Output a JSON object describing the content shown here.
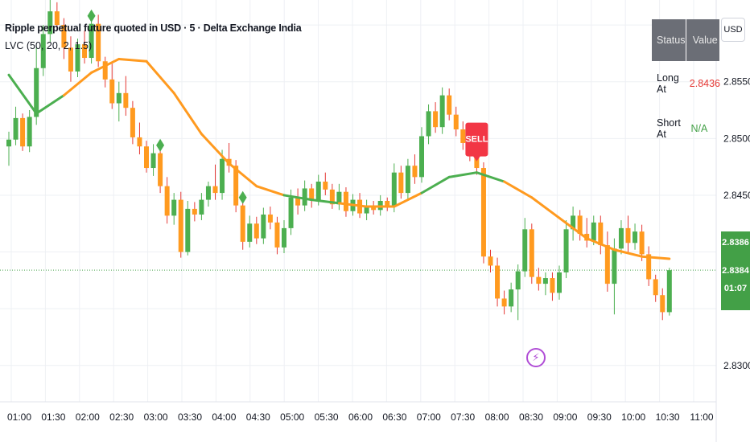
{
  "header": {
    "title": "Ripple perpetual future quoted in USD · 5 · Delta Exchange India",
    "indicator": "LVC (50, 20, 2, 1.5)"
  },
  "currency_button": "USD",
  "status_table": {
    "header": [
      "Status",
      "Value"
    ],
    "rows": [
      {
        "label": "Long At",
        "value": "2.8436",
        "color": "#e53935"
      },
      {
        "label": "Short At",
        "value": "N/A",
        "color": "#43a047"
      }
    ]
  },
  "price_labels": {
    "last_price": "2.8386",
    "current_price": "2.8384",
    "countdown": "01:07",
    "color": "#43a047"
  },
  "chart_data": {
    "type": "candlestick",
    "x_ticks": [
      "01:00",
      "01:30",
      "02:00",
      "02:30",
      "03:00",
      "03:30",
      "04:00",
      "04:30",
      "05:00",
      "05:30",
      "06:00",
      "06:30",
      "07:00",
      "07:30",
      "08:00",
      "08:30",
      "09:00",
      "09:30",
      "10:00",
      "10:30",
      "11:00"
    ],
    "y_ticks": [
      "2.8550",
      "2.8500",
      "2.8450",
      "2.8300"
    ],
    "ylim": [
      2.8268,
      2.8622
    ],
    "colors": {
      "up": "#4caf50",
      "down": "#ff9a1f",
      "ma_down": "#ff9a1f",
      "ma_up": "#4caf50",
      "wick_up": "#4caf50",
      "wick_down": "#e53935"
    },
    "candles": [
      {
        "t": 0,
        "o": 2.8493,
        "h": 2.8506,
        "l": 2.8476,
        "c": 2.8499
      },
      {
        "t": 1,
        "o": 2.8499,
        "h": 2.8528,
        "l": 2.8494,
        "c": 2.8518
      },
      {
        "t": 2,
        "o": 2.8518,
        "h": 2.8522,
        "l": 2.8489,
        "c": 2.8493
      },
      {
        "t": 3,
        "o": 2.8493,
        "h": 2.8525,
        "l": 2.8488,
        "c": 2.8519
      },
      {
        "t": 4,
        "o": 2.8519,
        "h": 2.858,
        "l": 2.8512,
        "c": 2.8562
      },
      {
        "t": 5,
        "o": 2.8562,
        "h": 2.86,
        "l": 2.8555,
        "c": 2.8592
      },
      {
        "t": 6,
        "o": 2.8592,
        "h": 2.8622,
        "l": 2.8585,
        "c": 2.8612
      },
      {
        "t": 7,
        "o": 2.8612,
        "h": 2.862,
        "l": 2.8595,
        "c": 2.86
      },
      {
        "t": 8,
        "o": 2.86,
        "h": 2.8606,
        "l": 2.857,
        "c": 2.858
      },
      {
        "t": 9,
        "o": 2.858,
        "h": 2.859,
        "l": 2.855,
        "c": 2.8559
      },
      {
        "t": 10,
        "o": 2.8559,
        "h": 2.8588,
        "l": 2.8554,
        "c": 2.8583
      },
      {
        "t": 11,
        "o": 2.8583,
        "h": 2.8595,
        "l": 2.8566,
        "c": 2.8571
      },
      {
        "t": 12,
        "o": 2.8571,
        "h": 2.8606,
        "l": 2.8566,
        "c": 2.8601
      },
      {
        "t": 13,
        "o": 2.8601,
        "h": 2.8609,
        "l": 2.8563,
        "c": 2.8568
      },
      {
        "t": 14,
        "o": 2.8568,
        "h": 2.8572,
        "l": 2.8545,
        "c": 2.8552
      },
      {
        "t": 15,
        "o": 2.8552,
        "h": 2.8566,
        "l": 2.8526,
        "c": 2.8531
      },
      {
        "t": 16,
        "o": 2.8531,
        "h": 2.855,
        "l": 2.8515,
        "c": 2.854
      },
      {
        "t": 17,
        "o": 2.854,
        "h": 2.8555,
        "l": 2.852,
        "c": 2.8527
      },
      {
        "t": 18,
        "o": 2.8527,
        "h": 2.8533,
        "l": 2.8495,
        "c": 2.8501
      },
      {
        "t": 19,
        "o": 2.8501,
        "h": 2.8514,
        "l": 2.8486,
        "c": 2.8493
      },
      {
        "t": 20,
        "o": 2.8493,
        "h": 2.8498,
        "l": 2.847,
        "c": 2.8474
      },
      {
        "t": 21,
        "o": 2.8474,
        "h": 2.8495,
        "l": 2.8467,
        "c": 2.8487
      },
      {
        "t": 22,
        "o": 2.8487,
        "h": 2.8491,
        "l": 2.8452,
        "c": 2.8458
      },
      {
        "t": 23,
        "o": 2.8458,
        "h": 2.8466,
        "l": 2.8425,
        "c": 2.8432
      },
      {
        "t": 24,
        "o": 2.8432,
        "h": 2.8452,
        "l": 2.8424,
        "c": 2.8446
      },
      {
        "t": 25,
        "o": 2.8446,
        "h": 2.8453,
        "l": 2.8395,
        "c": 2.84
      },
      {
        "t": 26,
        "o": 2.84,
        "h": 2.8445,
        "l": 2.8397,
        "c": 2.8438
      },
      {
        "t": 27,
        "o": 2.8438,
        "h": 2.8444,
        "l": 2.8427,
        "c": 2.8433
      },
      {
        "t": 28,
        "o": 2.8433,
        "h": 2.8452,
        "l": 2.8428,
        "c": 2.8446
      },
      {
        "t": 29,
        "o": 2.8446,
        "h": 2.8462,
        "l": 2.844,
        "c": 2.8458
      },
      {
        "t": 30,
        "o": 2.8458,
        "h": 2.8477,
        "l": 2.8446,
        "c": 2.8452
      },
      {
        "t": 31,
        "o": 2.8452,
        "h": 2.849,
        "l": 2.8446,
        "c": 2.8482
      },
      {
        "t": 32,
        "o": 2.8482,
        "h": 2.8496,
        "l": 2.847,
        "c": 2.8476
      },
      {
        "t": 33,
        "o": 2.8476,
        "h": 2.8481,
        "l": 2.8435,
        "c": 2.8441
      },
      {
        "t": 34,
        "o": 2.8441,
        "h": 2.8447,
        "l": 2.8402,
        "c": 2.8409
      },
      {
        "t": 35,
        "o": 2.8409,
        "h": 2.8432,
        "l": 2.8404,
        "c": 2.8425
      },
      {
        "t": 36,
        "o": 2.8425,
        "h": 2.8431,
        "l": 2.8407,
        "c": 2.8412
      },
      {
        "t": 37,
        "o": 2.8412,
        "h": 2.8439,
        "l": 2.8407,
        "c": 2.8433
      },
      {
        "t": 38,
        "o": 2.8433,
        "h": 2.844,
        "l": 2.842,
        "c": 2.8426
      },
      {
        "t": 39,
        "o": 2.8426,
        "h": 2.8431,
        "l": 2.8398,
        "c": 2.8404
      },
      {
        "t": 40,
        "o": 2.8404,
        "h": 2.8428,
        "l": 2.8399,
        "c": 2.8421
      },
      {
        "t": 41,
        "o": 2.8421,
        "h": 2.8455,
        "l": 2.8415,
        "c": 2.8448
      },
      {
        "t": 42,
        "o": 2.8448,
        "h": 2.8456,
        "l": 2.8433,
        "c": 2.8441
      },
      {
        "t": 43,
        "o": 2.8441,
        "h": 2.8463,
        "l": 2.8436,
        "c": 2.8456
      },
      {
        "t": 44,
        "o": 2.8456,
        "h": 2.846,
        "l": 2.8439,
        "c": 2.8446
      },
      {
        "t": 45,
        "o": 2.8446,
        "h": 2.8468,
        "l": 2.8441,
        "c": 2.8462
      },
      {
        "t": 46,
        "o": 2.8462,
        "h": 2.847,
        "l": 2.845,
        "c": 2.8455
      },
      {
        "t": 47,
        "o": 2.8455,
        "h": 2.846,
        "l": 2.8438,
        "c": 2.8442
      },
      {
        "t": 48,
        "o": 2.8442,
        "h": 2.846,
        "l": 2.8437,
        "c": 2.8453
      },
      {
        "t": 49,
        "o": 2.8453,
        "h": 2.8457,
        "l": 2.8431,
        "c": 2.8436
      },
      {
        "t": 50,
        "o": 2.8436,
        "h": 2.8451,
        "l": 2.8432,
        "c": 2.8446
      },
      {
        "t": 51,
        "o": 2.8446,
        "h": 2.8452,
        "l": 2.843,
        "c": 2.8434
      },
      {
        "t": 52,
        "o": 2.8434,
        "h": 2.8446,
        "l": 2.8428,
        "c": 2.844
      },
      {
        "t": 53,
        "o": 2.844,
        "h": 2.8445,
        "l": 2.8433,
        "c": 2.8437
      },
      {
        "t": 54,
        "o": 2.8437,
        "h": 2.845,
        "l": 2.8432,
        "c": 2.8445
      },
      {
        "t": 55,
        "o": 2.8445,
        "h": 2.8448,
        "l": 2.8436,
        "c": 2.844
      },
      {
        "t": 56,
        "o": 2.844,
        "h": 2.8478,
        "l": 2.8435,
        "c": 2.847
      },
      {
        "t": 57,
        "o": 2.847,
        "h": 2.8476,
        "l": 2.8447,
        "c": 2.8452
      },
      {
        "t": 58,
        "o": 2.8452,
        "h": 2.8482,
        "l": 2.8446,
        "c": 2.8476
      },
      {
        "t": 59,
        "o": 2.8476,
        "h": 2.8486,
        "l": 2.846,
        "c": 2.8466
      },
      {
        "t": 60,
        "o": 2.8466,
        "h": 2.851,
        "l": 2.8461,
        "c": 2.8502
      },
      {
        "t": 61,
        "o": 2.8502,
        "h": 2.853,
        "l": 2.8495,
        "c": 2.8524
      },
      {
        "t": 62,
        "o": 2.8524,
        "h": 2.8532,
        "l": 2.8505,
        "c": 2.851
      },
      {
        "t": 63,
        "o": 2.851,
        "h": 2.8545,
        "l": 2.8504,
        "c": 2.8538
      },
      {
        "t": 64,
        "o": 2.8538,
        "h": 2.8544,
        "l": 2.8516,
        "c": 2.8521
      },
      {
        "t": 65,
        "o": 2.8521,
        "h": 2.8528,
        "l": 2.8502,
        "c": 2.8508
      },
      {
        "t": 66,
        "o": 2.8508,
        "h": 2.8515,
        "l": 2.849,
        "c": 2.8496
      },
      {
        "t": 67,
        "o": 2.8496,
        "h": 2.8504,
        "l": 2.848,
        "c": 2.8487
      },
      {
        "t": 68,
        "o": 2.8487,
        "h": 2.849,
        "l": 2.8468,
        "c": 2.8474
      },
      {
        "t": 69,
        "o": 2.8474,
        "h": 2.8479,
        "l": 2.839,
        "c": 2.8396
      },
      {
        "t": 70,
        "o": 2.8396,
        "h": 2.8402,
        "l": 2.8382,
        "c": 2.8388
      },
      {
        "t": 71,
        "o": 2.8388,
        "h": 2.8395,
        "l": 2.8352,
        "c": 2.8359
      },
      {
        "t": 72,
        "o": 2.8359,
        "h": 2.8366,
        "l": 2.8345,
        "c": 2.8352
      },
      {
        "t": 73,
        "o": 2.8352,
        "h": 2.8373,
        "l": 2.8347,
        "c": 2.8367
      },
      {
        "t": 74,
        "o": 2.8367,
        "h": 2.8389,
        "l": 2.834,
        "c": 2.8383
      },
      {
        "t": 75,
        "o": 2.8383,
        "h": 2.843,
        "l": 2.8378,
        "c": 2.842
      },
      {
        "t": 76,
        "o": 2.842,
        "h": 2.8425,
        "l": 2.8372,
        "c": 2.8378
      },
      {
        "t": 77,
        "o": 2.8378,
        "h": 2.8386,
        "l": 2.8366,
        "c": 2.8372
      },
      {
        "t": 78,
        "o": 2.8372,
        "h": 2.8382,
        "l": 2.8362,
        "c": 2.8377
      },
      {
        "t": 79,
        "o": 2.8377,
        "h": 2.8382,
        "l": 2.8357,
        "c": 2.8364
      },
      {
        "t": 80,
        "o": 2.8364,
        "h": 2.8388,
        "l": 2.8358,
        "c": 2.8382
      },
      {
        "t": 81,
        "o": 2.8382,
        "h": 2.8428,
        "l": 2.8377,
        "c": 2.842
      },
      {
        "t": 82,
        "o": 2.842,
        "h": 2.844,
        "l": 2.841,
        "c": 2.8432
      },
      {
        "t": 83,
        "o": 2.8432,
        "h": 2.8437,
        "l": 2.841,
        "c": 2.8416
      },
      {
        "t": 84,
        "o": 2.8416,
        "h": 2.843,
        "l": 2.8404,
        "c": 2.841
      },
      {
        "t": 85,
        "o": 2.841,
        "h": 2.8432,
        "l": 2.8406,
        "c": 2.8426
      },
      {
        "t": 86,
        "o": 2.8426,
        "h": 2.8432,
        "l": 2.8398,
        "c": 2.8406
      },
      {
        "t": 87,
        "o": 2.8406,
        "h": 2.8418,
        "l": 2.8365,
        "c": 2.8372
      },
      {
        "t": 88,
        "o": 2.8372,
        "h": 2.8412,
        "l": 2.8345,
        "c": 2.8403
      },
      {
        "t": 89,
        "o": 2.8403,
        "h": 2.8428,
        "l": 2.8398,
        "c": 2.8421
      },
      {
        "t": 90,
        "o": 2.8421,
        "h": 2.8432,
        "l": 2.84,
        "c": 2.8408
      },
      {
        "t": 91,
        "o": 2.8408,
        "h": 2.8425,
        "l": 2.8402,
        "c": 2.8418
      },
      {
        "t": 92,
        "o": 2.8418,
        "h": 2.8424,
        "l": 2.8392,
        "c": 2.8398
      },
      {
        "t": 93,
        "o": 2.8398,
        "h": 2.8405,
        "l": 2.837,
        "c": 2.8376
      },
      {
        "t": 94,
        "o": 2.8376,
        "h": 2.838,
        "l": 2.8356,
        "c": 2.8362
      },
      {
        "t": 95,
        "o": 2.8362,
        "h": 2.8368,
        "l": 2.834,
        "c": 2.8347
      },
      {
        "t": 96,
        "o": 2.8347,
        "h": 2.8386,
        "l": 2.8344,
        "c": 2.8384
      }
    ],
    "ma": [
      {
        "t": 0,
        "v": 2.8556
      },
      {
        "t": 4,
        "v": 2.8522
      },
      {
        "t": 8,
        "v": 2.8538
      },
      {
        "t": 12,
        "v": 2.8558
      },
      {
        "t": 16,
        "v": 2.857
      },
      {
        "t": 20,
        "v": 2.8568
      },
      {
        "t": 24,
        "v": 2.854
      },
      {
        "t": 28,
        "v": 2.8504
      },
      {
        "t": 32,
        "v": 2.8478
      },
      {
        "t": 36,
        "v": 2.8458
      },
      {
        "t": 40,
        "v": 2.845
      },
      {
        "t": 44,
        "v": 2.8446
      },
      {
        "t": 48,
        "v": 2.8443
      },
      {
        "t": 52,
        "v": 2.844
      },
      {
        "t": 56,
        "v": 2.844
      },
      {
        "t": 60,
        "v": 2.8452
      },
      {
        "t": 64,
        "v": 2.8466
      },
      {
        "t": 68,
        "v": 2.847
      },
      {
        "t": 72,
        "v": 2.8462
      },
      {
        "t": 76,
        "v": 2.8448
      },
      {
        "t": 80,
        "v": 2.843
      },
      {
        "t": 84,
        "v": 2.8412
      },
      {
        "t": 88,
        "v": 2.8402
      },
      {
        "t": 92,
        "v": 2.8396
      },
      {
        "t": 96,
        "v": 2.8394
      }
    ],
    "ma_colors": [
      "up",
      "up",
      "down",
      "down",
      "down",
      "down",
      "down",
      "down",
      "down",
      "down",
      "up",
      "up",
      "down",
      "down",
      "down",
      "up",
      "up",
      "up",
      "down",
      "down",
      "down",
      "down",
      "down",
      "down"
    ],
    "buy_markers": [
      {
        "t": 12,
        "v": 2.8608
      },
      {
        "t": 22,
        "v": 2.8494
      },
      {
        "t": 34,
        "v": 2.8448
      }
    ],
    "sell_marker": {
      "t": 68,
      "v": 2.848,
      "label": "SELL"
    },
    "current_price_line": 2.8384,
    "grid": true
  }
}
